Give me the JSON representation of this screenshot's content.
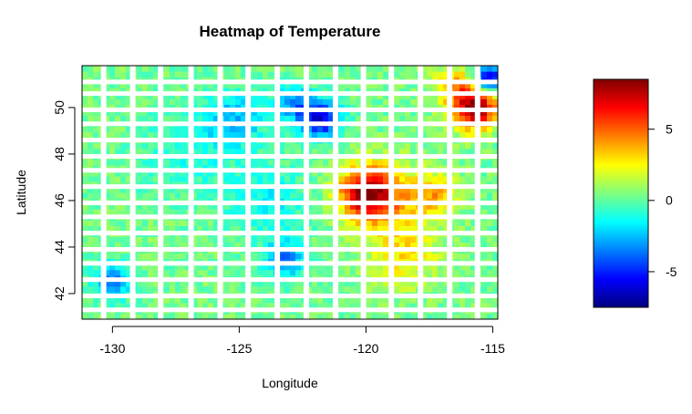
{
  "chart_data": {
    "type": "heatmap",
    "title": "Heatmap of Temperature",
    "xlabel": "Longitude",
    "ylabel": "Latitude",
    "xlim": [
      -131.2,
      -114.8
    ],
    "ylim": [
      40.9,
      51.8
    ],
    "x_ticks": [
      -130,
      -125,
      -120,
      -115
    ],
    "y_ticks": [
      42,
      44,
      46,
      48,
      50
    ],
    "colorbar": {
      "range": [
        -7.5,
        8.5
      ],
      "ticks": [
        5,
        0,
        -5
      ],
      "colors": [
        "#00007f",
        "#0000ff",
        "#007fff",
        "#00ffff",
        "#7fff7f",
        "#ffff00",
        "#ff7f00",
        "#ff0000",
        "#7f0000"
      ]
    },
    "grid_gaps": {
      "longitude_gaps": [
        -130.35,
        -129.2,
        -128.1,
        -126.9,
        -125.75,
        -124.65,
        -123.5,
        -122.35,
        -121.2,
        -120.1,
        -119.0,
        -117.85,
        -116.7,
        -115.6
      ],
      "latitude_gaps": [
        51.1,
        50.6,
        49.9,
        49.3,
        48.6,
        47.9,
        47.3,
        46.6,
        45.9,
        45.3,
        44.6,
        43.9,
        43.3,
        42.6,
        41.9,
        41.3
      ]
    },
    "hotspots": [
      {
        "lon": -120.0,
        "lat": 46.35,
        "value": 6.8,
        "spread": 1.1
      },
      {
        "lon": -119.2,
        "lat": 46.1,
        "value": 3.0,
        "spread": 1.5
      },
      {
        "lon": -117.3,
        "lat": 46.3,
        "value": 3.5,
        "spread": 0.9
      },
      {
        "lon": -115.7,
        "lat": 50.0,
        "value": 8.5,
        "spread": 0.9
      },
      {
        "lon": -116.5,
        "lat": 51.0,
        "value": 3.5,
        "spread": 0.8
      },
      {
        "lon": -118.5,
        "lat": 43.7,
        "value": 2.8,
        "spread": 1.4
      },
      {
        "lon": -121.8,
        "lat": 49.5,
        "value": -6.0,
        "spread": 0.8
      },
      {
        "lon": -122.8,
        "lat": 50.2,
        "value": -3.0,
        "spread": 0.8
      },
      {
        "lon": -115.2,
        "lat": 51.3,
        "value": -6.5,
        "spread": 0.6
      },
      {
        "lon": -130.0,
        "lat": 42.6,
        "value": -3.5,
        "spread": 0.8
      },
      {
        "lon": -123.2,
        "lat": 43.5,
        "value": -3.5,
        "spread": 0.8
      },
      {
        "lon": -123.8,
        "lat": 46.0,
        "value": -1.5,
        "spread": 1.5
      },
      {
        "lon": -125.2,
        "lat": 49.5,
        "value": -2.5,
        "spread": 1.2
      },
      {
        "lon": -127.0,
        "lat": 48.0,
        "value": -1.0,
        "spread": 2.0
      }
    ],
    "base_value": 0.3,
    "grid": false,
    "legend": "right"
  }
}
